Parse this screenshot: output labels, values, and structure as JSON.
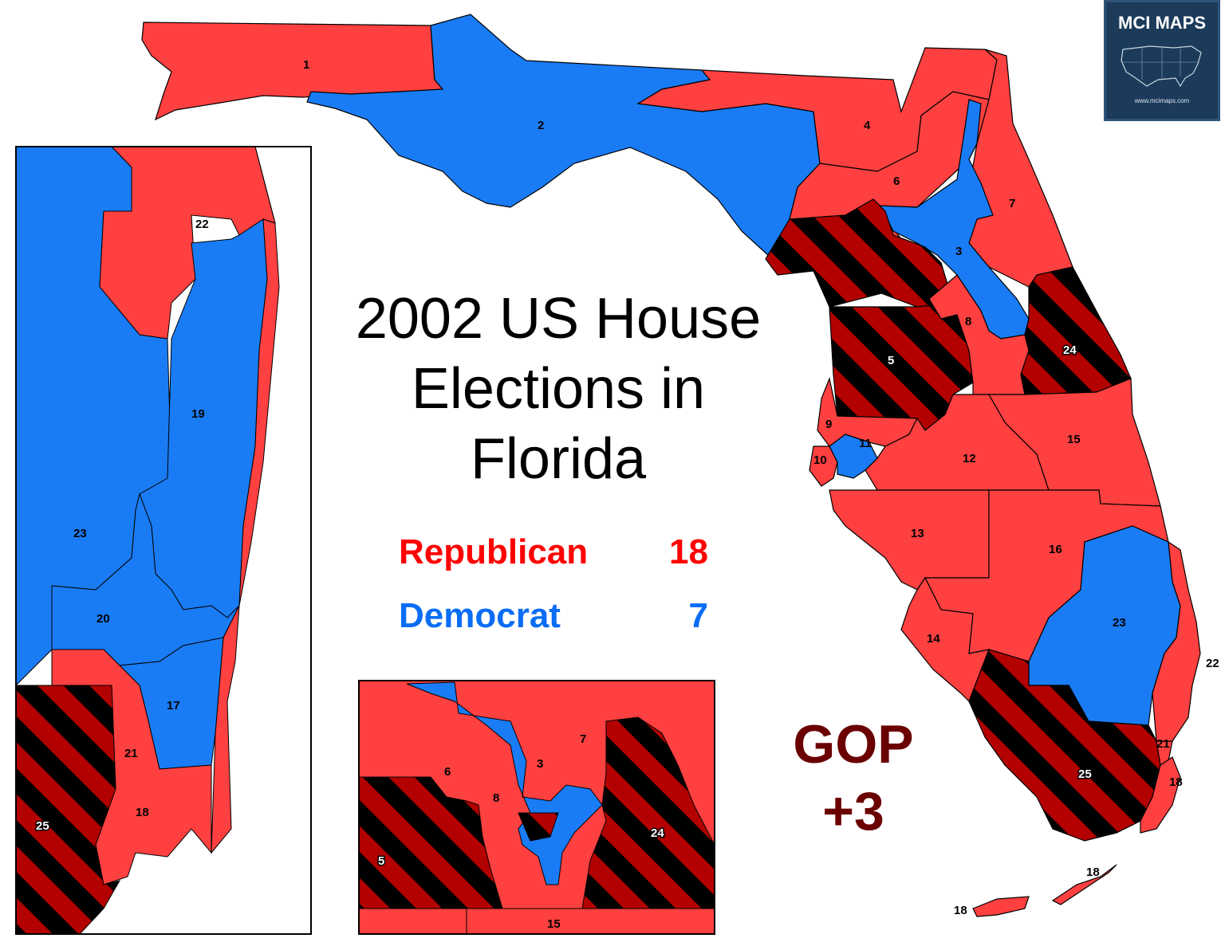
{
  "title": {
    "line1": "2002 US House",
    "line2": "Elections in",
    "line3": "Florida"
  },
  "legend": {
    "republican": {
      "label": "Republican",
      "count": "18",
      "color": "#ff0000"
    },
    "democrat": {
      "label": "Democrat",
      "count": "7",
      "color": "#0a6df5"
    }
  },
  "swing": {
    "line1": "GOP",
    "line2": "+3",
    "color": "#6b0000"
  },
  "badge": {
    "name": "MCI MAPS",
    "url": "www.mcimaps.com"
  },
  "colors": {
    "republican_fill": "#ff4040",
    "democrat_fill": "#1a7cf5",
    "flip_stripe_dark": "#000000",
    "flip_stripe_red": "#b30000",
    "border": "#000000"
  },
  "districts": {
    "main": [
      "1",
      "2",
      "4",
      "6",
      "7",
      "3",
      "8",
      "24",
      "5",
      "9",
      "11",
      "10",
      "12",
      "15",
      "13",
      "16",
      "23",
      "22",
      "14",
      "21",
      "25",
      "18",
      "18",
      "18"
    ],
    "inset_south": [
      "22",
      "19",
      "23",
      "20",
      "17",
      "21",
      "25",
      "18"
    ],
    "inset_central": [
      "7",
      "6",
      "3",
      "8",
      "24",
      "5",
      "15"
    ]
  }
}
